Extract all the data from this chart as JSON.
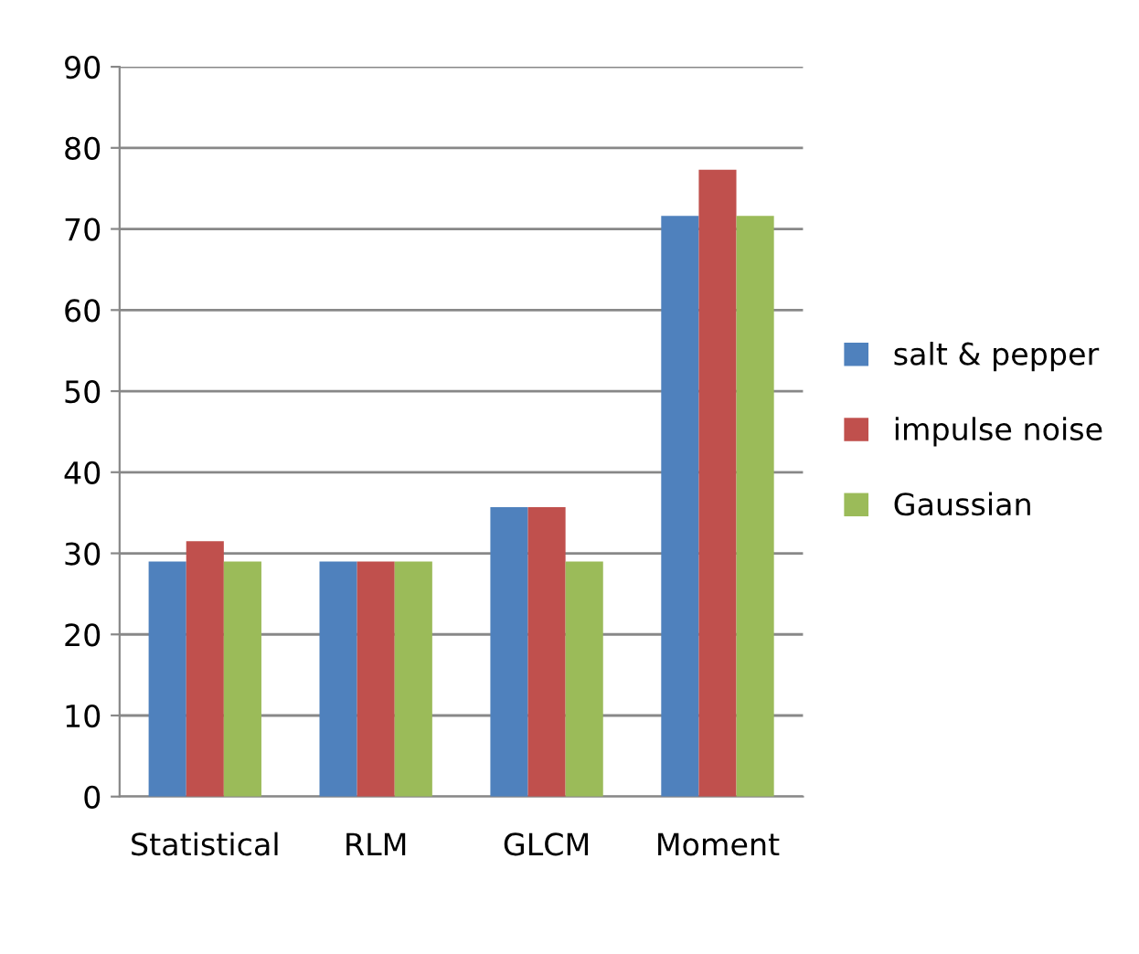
{
  "chart_data": {
    "type": "bar",
    "categories": [
      "Statistical",
      "RLM",
      "GLCM",
      "Moment"
    ],
    "series": [
      {
        "name": "salt & pepper",
        "color": "#4f81bd",
        "values": [
          29,
          29,
          35.7,
          71.6
        ]
      },
      {
        "name": "impulse noise",
        "color": "#c0504d",
        "values": [
          31.5,
          29,
          35.7,
          77.3
        ]
      },
      {
        "name": "Gaussian",
        "color": "#9bbb59",
        "values": [
          29,
          29,
          29,
          71.6
        ]
      }
    ],
    "ylim": [
      0,
      90
    ],
    "yticks": [
      0,
      10,
      20,
      30,
      40,
      50,
      60,
      70,
      80,
      90
    ],
    "grid": "y",
    "legend": "right"
  }
}
